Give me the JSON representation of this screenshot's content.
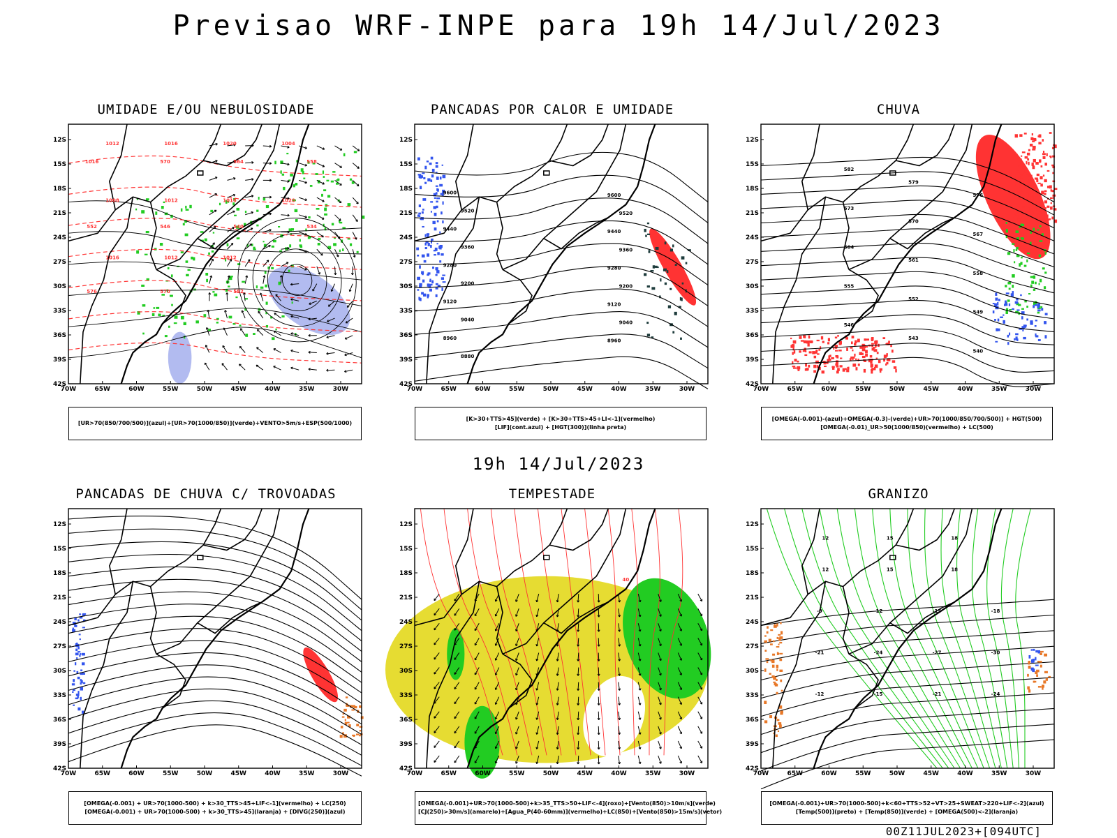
{
  "header": {
    "title": "Previsao WRF-INPE  para 19h 14/Jul/2023"
  },
  "mid_date": "19h 14/Jul/2023",
  "footer": "00Z11JUL2023+[094UTC]",
  "lat_labels": [
    "12S",
    "15S",
    "18S",
    "21S",
    "24S",
    "27S",
    "30S",
    "33S",
    "36S",
    "39S",
    "42S"
  ],
  "lon_labels": [
    "70W",
    "65W",
    "60W",
    "55W",
    "50W",
    "45W",
    "40W",
    "35W",
    "30W"
  ],
  "colors": {
    "red": "#ff3333",
    "green": "#22cc22",
    "blue": "#3355ee",
    "lavender": "#aab4ee",
    "yellow": "#e6dc32",
    "orange": "#e87828",
    "darkteal": "#1e3c3c",
    "black": "#000000"
  },
  "panels": [
    {
      "title": "UMIDADE E/OU NEBULOSIDADE",
      "legend": [
        "[UR>70(850/700/500)](azul)+[UR>70(1000/850)](verde)+VENTO>5m/s+ESP(500/1000)"
      ],
      "contour_labels": [
        "1012",
        "1016",
        "1020",
        "1004",
        "1008",
        "1012",
        "1016",
        "1020",
        "1016",
        "1012",
        "1012",
        "1016",
        "570",
        "564",
        "558",
        "552",
        "546",
        "540",
        "534",
        "576",
        "570",
        "552"
      ]
    },
    {
      "title": "PANCADAS POR CALOR E UMIDADE",
      "legend": [
        "[K>30+TTS>45](verde) + [K>30+TTS>45+LI<-1](vermelho)",
        "[LIF](cont.azul) + [HGT(300)](linha preta)"
      ],
      "contour_labels": [
        "9600",
        "9520",
        "9440",
        "9360",
        "9280",
        "9200",
        "9120",
        "9040",
        "8960",
        "8880",
        "9600",
        "9520",
        "9440",
        "9360",
        "9280",
        "9200",
        "9120",
        "9040",
        "8960"
      ]
    },
    {
      "title": "CHUVA",
      "legend": [
        "[OMEGA(-0.001)-(azul)+OMEGA(-0.3)-(verde)+UR>70(1000/850/700/500)] + HGT(500)",
        "[OMEGA(-0.01)_UR>50(1000/850)(vermelho) + LC(500)"
      ],
      "contour_labels": [
        "582",
        "579",
        "576",
        "573",
        "570",
        "567",
        "564",
        "561",
        "558",
        "555",
        "552",
        "549",
        "546",
        "543",
        "540"
      ]
    },
    {
      "title": "PANCADAS DE CHUVA C/ TROVOADAS",
      "legend": [
        "[OMEGA(-0.001) + UR>70(1000-500) + k>30_TTS>45+LIF<-1](vermelho) + LC(250)",
        "[OMEGA(-0.001) + UR>70(1000-500) + k>30_TTS>45](laranja) + [DIVG(250)](azul)"
      ],
      "contour_labels": []
    },
    {
      "title": "TEMPESTADE",
      "legend": [
        "[OMEGA(-0.001)+UR>70(1000-500)+k>35_TTS>50+LIF<-4](roxo)+[Vento(850)>10m/s](verde)",
        "[CJ(250)>30m/s](amarelo)+[Agua_P(40-60mm)](vermelho)+LC(850)+[Vento(850)>15m/s](vetor)"
      ],
      "contour_labels": [
        "40"
      ]
    },
    {
      "title": "GRANIZO",
      "legend": [
        "[OMEGA(-0.001)+UR>70(1000-500)+k<60+TTS>52+VT>25+SWEAT>220+LIF<-2](azul)",
        "[Temp(500)](preto) + [Temp(850)](verde) + [OMEGA(500)<-2](laranja)"
      ],
      "contour_labels": [
        "-9",
        "-12",
        "-15",
        "-18",
        "-21",
        "-24",
        "-27",
        "-30",
        "-12",
        "-15",
        "-21",
        "-24",
        "12",
        "15",
        "18",
        "12",
        "15",
        "18"
      ]
    }
  ]
}
